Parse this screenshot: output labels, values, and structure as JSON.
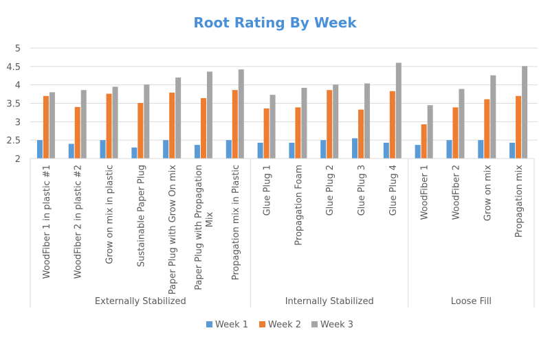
{
  "chart_data": {
    "type": "bar",
    "title": "Root Rating By Week",
    "xlabel": "",
    "ylabel": "",
    "ylim": [
      2,
      5
    ],
    "yticks": [
      "2",
      "2.5",
      "3",
      "3.5",
      "4",
      "4.5",
      "5"
    ],
    "grid": true,
    "legend_position": "bottom",
    "groups": [
      {
        "name": "Externally Stabilized",
        "count": 7
      },
      {
        "name": "Internally Stabilized",
        "count": 5
      },
      {
        "name": "Loose Fill",
        "count": 4
      }
    ],
    "categories": [
      "WoodFiber 1 in plastic #1",
      "WoodFiber 2 in plastic #2",
      "Grow on mix in plastic",
      "Sustainable Paper Plug",
      "Paper Plug with Grow On mix",
      "Paper Plug with Propagation Mix",
      "Propagation mix in Plastic",
      "Glue Plug 1",
      "Propagation Foam",
      "Glue Plug 2",
      "Glue Plug 3",
      "Glue Plug 4",
      "WoodFiber 1",
      "WoodFiber 2",
      "Grow on mix",
      "Propagation mix"
    ],
    "series": [
      {
        "name": "Week 1",
        "color": "#5b9bd5",
        "values": [
          2.5,
          2.4,
          2.5,
          2.3,
          2.5,
          2.37,
          2.5,
          2.43,
          2.43,
          2.5,
          2.55,
          2.43,
          2.37,
          2.5,
          2.5,
          2.43
        ]
      },
      {
        "name": "Week 2",
        "color": "#ed7d31",
        "values": [
          3.7,
          3.4,
          3.76,
          3.51,
          3.79,
          3.64,
          3.86,
          3.36,
          3.39,
          3.86,
          3.33,
          3.83,
          2.93,
          3.39,
          3.61,
          3.7
        ]
      },
      {
        "name": "Week 3",
        "color": "#a5a5a5",
        "values": [
          3.8,
          3.86,
          3.95,
          4.01,
          4.2,
          4.36,
          4.42,
          3.73,
          3.92,
          4.01,
          4.04,
          4.6,
          3.45,
          3.89,
          4.26,
          4.51
        ]
      }
    ],
    "title_color": "#4a90d9"
  }
}
